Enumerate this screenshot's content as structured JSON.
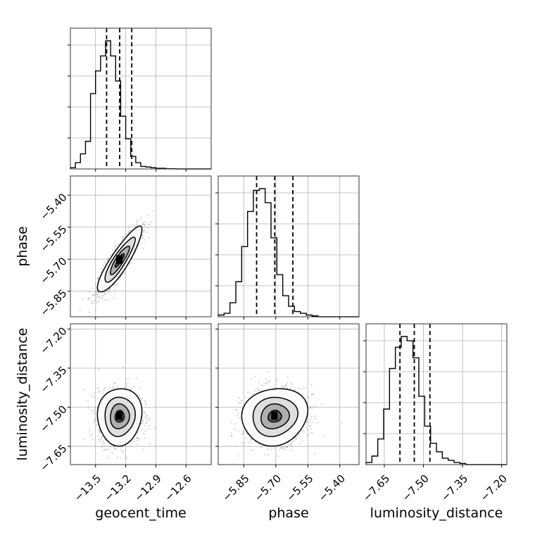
{
  "chart_data": {
    "type": "corner",
    "parameters": [
      {
        "name": "geocent_time",
        "label": "geocent_time",
        "range": [
          -13.75,
          -12.35
        ],
        "ticks": [
          -13.5,
          -13.2,
          -12.9,
          -12.6
        ],
        "tick_labels": [
          "−13.5",
          "−13.2",
          "−12.9",
          "−12.6"
        ],
        "quantiles": [
          -13.39,
          -13.26,
          -13.14
        ],
        "hist_edges_start": -13.75,
        "hist_bin_width": 0.05,
        "hist_counts": [
          1,
          5,
          12,
          22,
          60,
          78,
          90,
          102,
          90,
          70,
          42,
          24,
          10,
          5,
          2,
          1.5,
          1,
          0.5,
          0.5,
          0.2,
          0.2,
          0,
          0,
          0,
          0,
          0,
          0,
          0
        ]
      },
      {
        "name": "phase",
        "label": "phase",
        "range": [
          -5.97,
          -5.31
        ],
        "ticks": [
          -5.85,
          -5.7,
          -5.55,
          -5.4
        ],
        "tick_labels": [
          "−5.85",
          "−5.70",
          "−5.55",
          "−5.40"
        ],
        "quantiles": [
          -5.79,
          -5.705,
          -5.62
        ],
        "hist_edges_start": -5.97,
        "hist_bin_width": 0.0275,
        "hist_counts": [
          1,
          2,
          8,
          20,
          40,
          60,
          72,
          73,
          65,
          45,
          24,
          12,
          6,
          3,
          2,
          1,
          0.5,
          0,
          0,
          0,
          0,
          0,
          0,
          0
        ]
      },
      {
        "name": "luminosity_distance",
        "label": "luminosity_distance",
        "range": [
          -7.72,
          -7.18
        ],
        "ticks": [
          -7.65,
          -7.5,
          -7.35,
          -7.2
        ],
        "tick_labels": [
          "−7.65",
          "−7.50",
          "−7.35",
          "−7.20"
        ],
        "quantiles": [
          -7.59,
          -7.535,
          -7.475
        ],
        "hist_edges_start": -7.72,
        "hist_bin_width": 0.0225,
        "hist_counts": [
          1,
          4,
          12,
          26,
          45,
          55,
          60,
          58,
          50,
          32,
          18,
          10,
          6,
          3,
          2,
          1,
          0.5,
          0,
          0,
          0,
          0,
          0,
          0,
          0
        ]
      }
    ],
    "pairs": [
      {
        "x": 0,
        "y": 1,
        "center": [
          -13.26,
          -5.705
        ],
        "sd": [
          0.1,
          0.07
        ],
        "rho": 0.88
      },
      {
        "x": 0,
        "y": 2,
        "center": [
          -13.26,
          -7.535
        ],
        "sd": [
          0.1,
          0.05
        ],
        "rho": 0.05
      },
      {
        "x": 1,
        "y": 2,
        "center": [
          -5.705,
          -7.535
        ],
        "sd": [
          0.07,
          0.05
        ],
        "rho": 0.1
      }
    ],
    "grid": true
  }
}
